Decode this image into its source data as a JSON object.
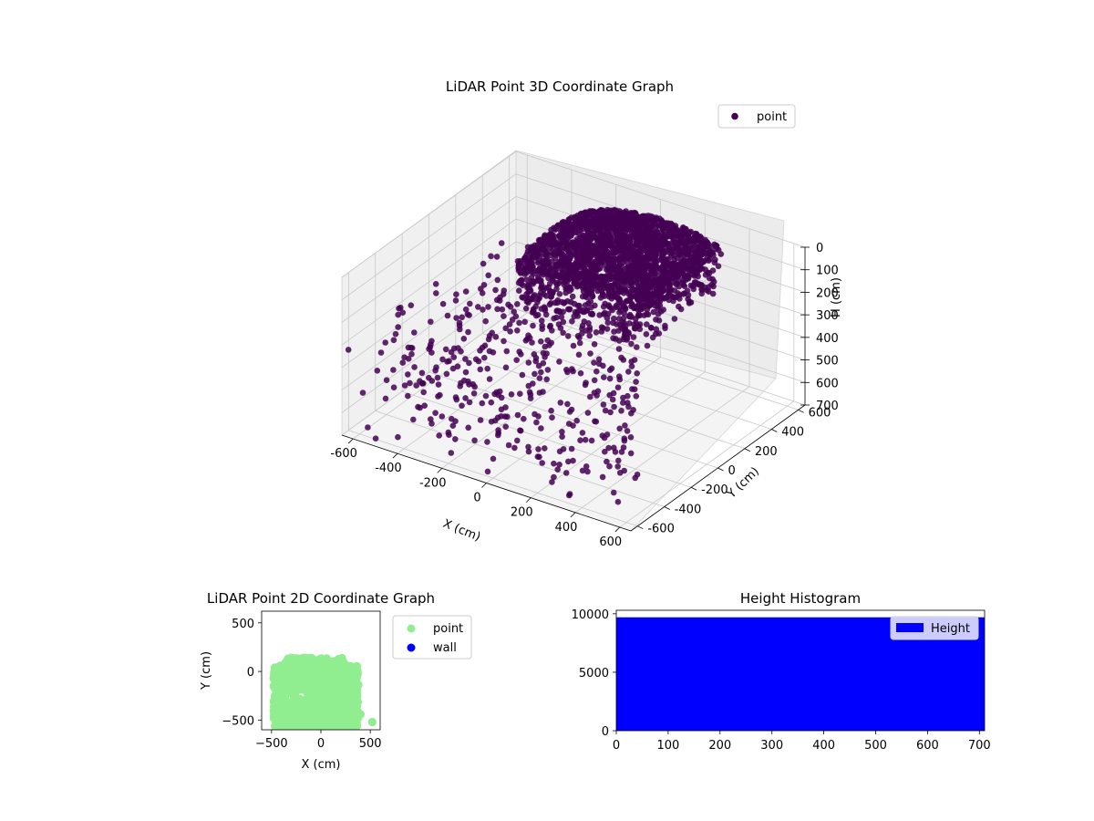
{
  "chart_data": [
    {
      "type": "scatter",
      "projection": "3d",
      "title": "LiDAR Point 3D Coordinate Graph",
      "xlabel": "X (cm)",
      "ylabel": "Y (cm)",
      "zlabel": "H (cm)",
      "xlim": [
        -650,
        650
      ],
      "ylim": [
        -650,
        650
      ],
      "zlim": [
        700,
        0
      ],
      "x_ticks": [
        "-600",
        "-400",
        "-200",
        "0",
        "200",
        "400",
        "600"
      ],
      "y_ticks": [
        "-600",
        "-400",
        "-200",
        "0",
        "200",
        "400",
        "600"
      ],
      "z_ticks": [
        "0",
        "100",
        "200",
        "300",
        "400",
        "500",
        "600",
        "700"
      ],
      "grid": true,
      "legend": "top-right",
      "series": [
        {
          "name": "point",
          "color": "#440154",
          "regions": [
            {
              "kind": "dense_shell",
              "x": [
                -260,
                340
              ],
              "y": [
                -60,
                600
              ],
              "h": [
                0,
                260
              ]
            },
            {
              "kind": "scattered",
              "x": [
                -650,
                650
              ],
              "y": [
                -650,
                650
              ],
              "h": [
                250,
                700
              ]
            }
          ]
        }
      ]
    },
    {
      "type": "scatter",
      "title": "LiDAR Point 2D Coordinate Graph",
      "xlabel": "X (cm)",
      "ylabel": "Y (cm)",
      "xlim": [
        -600,
        600
      ],
      "ylim": [
        -600,
        620
      ],
      "x_ticks": [
        "-500",
        "0",
        "500"
      ],
      "y_ticks": [
        "-500",
        "0",
        "500"
      ],
      "legend": "outside-right",
      "series": [
        {
          "name": "point",
          "color": "#90ee90",
          "regions": [
            {
              "kind": "filled_blob",
              "x": [
                -480,
                380
              ],
              "y": [
                -600,
                140
              ]
            }
          ],
          "outliers": [
            [
              520,
              -520
            ],
            [
              400,
              -440
            ],
            [
              280,
              -280
            ]
          ]
        },
        {
          "name": "wall",
          "color": "#0000ff",
          "points": []
        }
      ]
    },
    {
      "type": "bar",
      "subtype": "histogram",
      "title": "Height Histogram",
      "xlim": [
        0,
        710
      ],
      "ylim": [
        0,
        10300
      ],
      "x_ticks": [
        "0",
        "100",
        "200",
        "300",
        "400",
        "500",
        "600",
        "700"
      ],
      "y_ticks": [
        "0",
        "5000",
        "10000"
      ],
      "bins": [
        [
          0,
          710
        ]
      ],
      "values": [
        9700
      ],
      "legend": "top-right",
      "series": [
        {
          "name": "Height",
          "color": "#0000ff"
        }
      ]
    }
  ]
}
